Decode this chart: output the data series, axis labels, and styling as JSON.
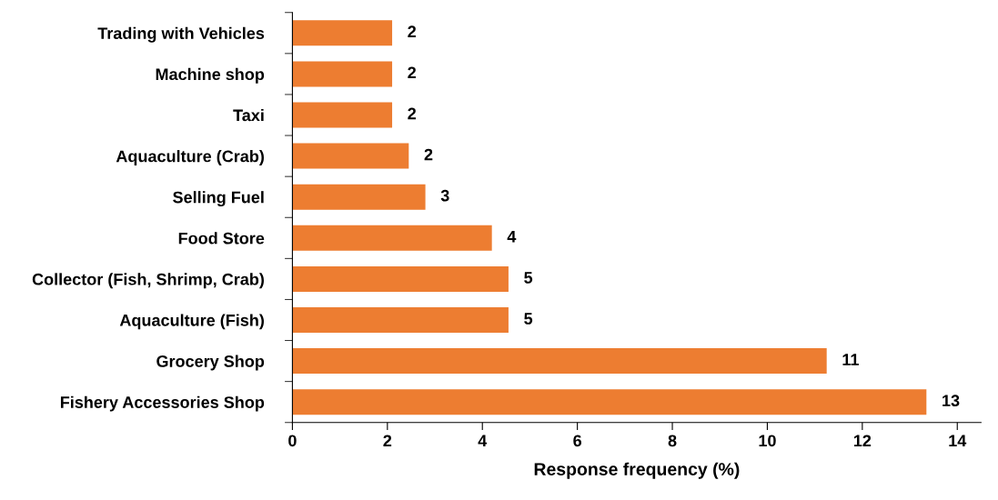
{
  "chart_data": {
    "type": "bar",
    "orientation": "horizontal",
    "xlabel": "Response frequency (%)",
    "categories": [
      "Trading with Vehicles",
      "Machine shop",
      "Taxi",
      "Aquaculture (Crab)",
      "Selling Fuel",
      "Food Store",
      "Collector (Fish, Shrimp, Crab)",
      "Aquaculture (Fish)",
      "Grocery Shop",
      "Fishery Accessories Shop"
    ],
    "values": [
      2.1,
      2.1,
      2.1,
      2.45,
      2.8,
      4.2,
      4.55,
      4.55,
      11.25,
      13.35
    ],
    "value_labels": [
      "2",
      "2",
      "2",
      "2",
      "3",
      "4",
      "5",
      "5",
      "11",
      "13"
    ],
    "color": "#ed7d31",
    "xlim": [
      0,
      14.5
    ],
    "xticks": [
      0,
      2,
      4,
      6,
      8,
      10,
      12,
      14
    ],
    "grid": false,
    "legend": false
  }
}
